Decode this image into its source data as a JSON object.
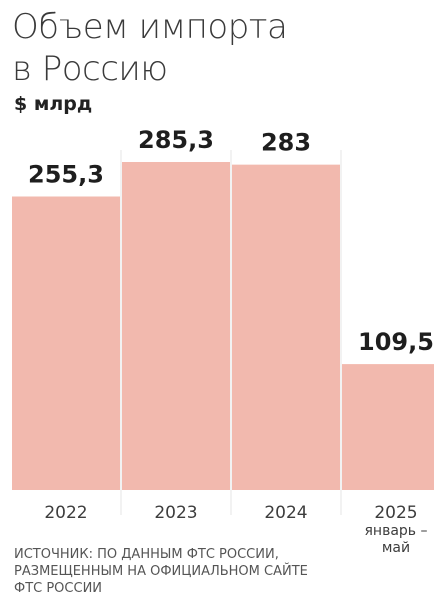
{
  "title_lines": [
    "Объем импорта",
    "в Россию"
  ],
  "unit": "$ млрд",
  "source_lines": [
    "ИСТОЧНИК: ПО ДАННЫМ ФТС РОССИИ,",
    "РАЗМЕЩЕННЫМ НА ОФИЦИАЛЬНОМ САЙТЕ",
    "ФТС РОССИИ"
  ],
  "colors": {
    "bar": "#f2b9ae",
    "gridline": "#e6e6e6"
  },
  "chart_data": {
    "type": "bar",
    "categories": [
      "2022",
      "2023",
      "2024",
      "2025"
    ],
    "category_sublabels": [
      "",
      "",
      "",
      "январь –\nмай"
    ],
    "values": [
      255.3,
      285.3,
      283,
      109.5
    ],
    "value_labels": [
      "255,3",
      "285,3",
      "283",
      "109,5"
    ],
    "title": "Объем импорта в Россию",
    "ylabel": "$ млрд",
    "ylim": [
      0,
      285.3
    ],
    "grid": true
  }
}
